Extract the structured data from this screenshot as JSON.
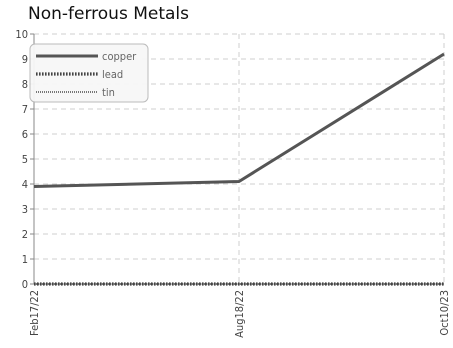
{
  "chart_data": {
    "type": "line",
    "title": "Non-ferrous Metals",
    "xlabel": "",
    "ylabel": "",
    "categories": [
      "Feb17/22",
      "Aug18/22",
      "Oct10/23"
    ],
    "ylim": [
      0,
      10
    ],
    "yticks": [
      "0",
      "1",
      "2",
      "3",
      "4",
      "5",
      "6",
      "7",
      "8",
      "9",
      "10"
    ],
    "grid": true,
    "legend_position": "top-left",
    "series": [
      {
        "name": "copper",
        "values": [
          3.9,
          4.1,
          9.2
        ],
        "color": "#555555",
        "style": "solid"
      },
      {
        "name": "lead",
        "values": [
          0.0,
          0.0,
          0.0
        ],
        "color": "#444444",
        "style": "beaded"
      },
      {
        "name": "tin",
        "values": [
          0.0,
          0.0,
          0.0
        ],
        "color": "#777777",
        "style": "striped"
      }
    ]
  }
}
